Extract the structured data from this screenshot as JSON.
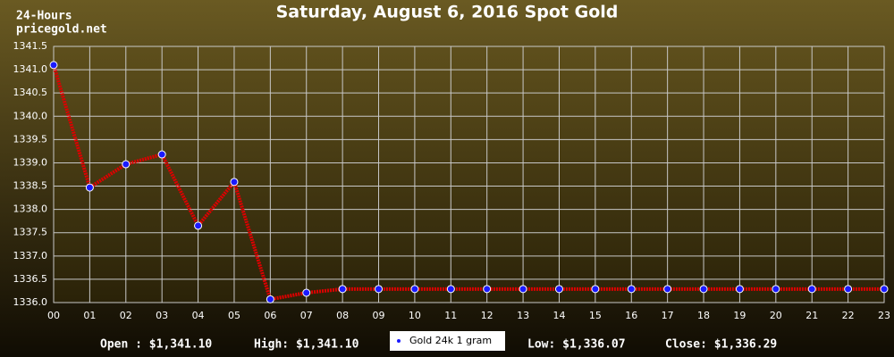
{
  "chart_data": {
    "type": "line",
    "title": "Saturday, August 6, 2016 Spot Gold",
    "corner_texts": [
      "24-Hours",
      "pricegold.net"
    ],
    "categories": [
      "00",
      "01",
      "02",
      "03",
      "04",
      "05",
      "06",
      "07",
      "08",
      "09",
      "10",
      "11",
      "12",
      "13",
      "14",
      "15",
      "16",
      "17",
      "18",
      "19",
      "20",
      "21",
      "22",
      "23"
    ],
    "series": [
      {
        "name": "Gold 24k 1 gram",
        "color": "#dd0000",
        "marker_color": "#1a1aff",
        "values": [
          1341.1,
          1338.47,
          1338.97,
          1339.18,
          1337.65,
          1338.59,
          1336.07,
          1336.21,
          1336.29,
          1336.29,
          1336.29,
          1336.29,
          1336.29,
          1336.29,
          1336.29,
          1336.29,
          1336.29,
          1336.29,
          1336.29,
          1336.29,
          1336.29,
          1336.29,
          1336.29,
          1336.29
        ]
      }
    ],
    "ylim": [
      1336.0,
      1341.5
    ],
    "yticks": [
      {
        "value": 1336.0,
        "label": "1336.0"
      },
      {
        "value": 1336.5,
        "label": "1336.5"
      },
      {
        "value": 1337.0,
        "label": "1337.0"
      },
      {
        "value": 1337.5,
        "label": "1337.5"
      },
      {
        "value": 1338.0,
        "label": "1338.0"
      },
      {
        "value": 1338.5,
        "label": "1338.5"
      },
      {
        "value": 1339.0,
        "label": "1339.0"
      },
      {
        "value": 1339.5,
        "label": "1339.5"
      },
      {
        "value": 1340.0,
        "label": "1340.0"
      },
      {
        "value": 1340.5,
        "label": "1340.5"
      },
      {
        "value": 1341.0,
        "label": "1341.0"
      },
      {
        "value": 1341.5,
        "label": "1341.5"
      }
    ],
    "grid": true,
    "stats": [
      "Open : $1,341.10",
      "High: $1,341.10",
      "Low: $1,336.07",
      "Close: $1,336.29"
    ]
  }
}
